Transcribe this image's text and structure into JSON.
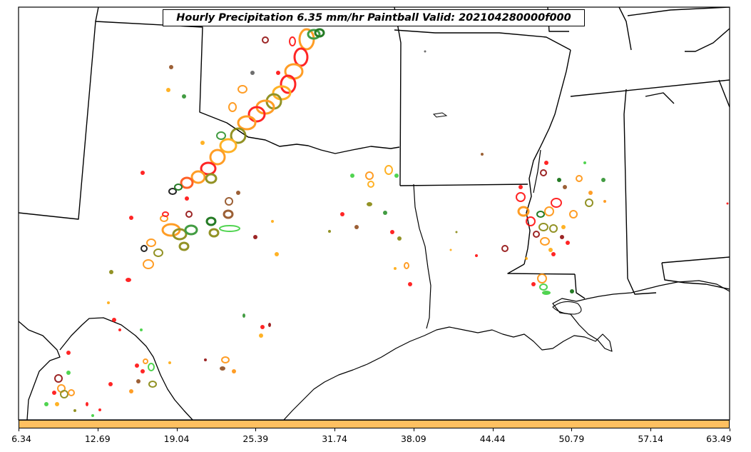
{
  "map": {
    "title": "Hourly Precipitation 6.35 mm/hr Paintball Valid: 202104280000f000",
    "precip_colors": [
      "#ff0000",
      "#ff8c00",
      "#ffa500",
      "#808000",
      "#228b22",
      "#32cd32",
      "#00aa00",
      "#8b0000",
      "#8b4513",
      "#555555",
      "#000000"
    ],
    "border_color": "#000000"
  },
  "colorbar": {
    "color": "#ffc060",
    "ticks": [
      "6.34",
      "12.69",
      "19.04",
      "25.39",
      "31.74",
      "38.09",
      "44.44",
      "50.79",
      "57.14",
      "63.49"
    ]
  }
}
